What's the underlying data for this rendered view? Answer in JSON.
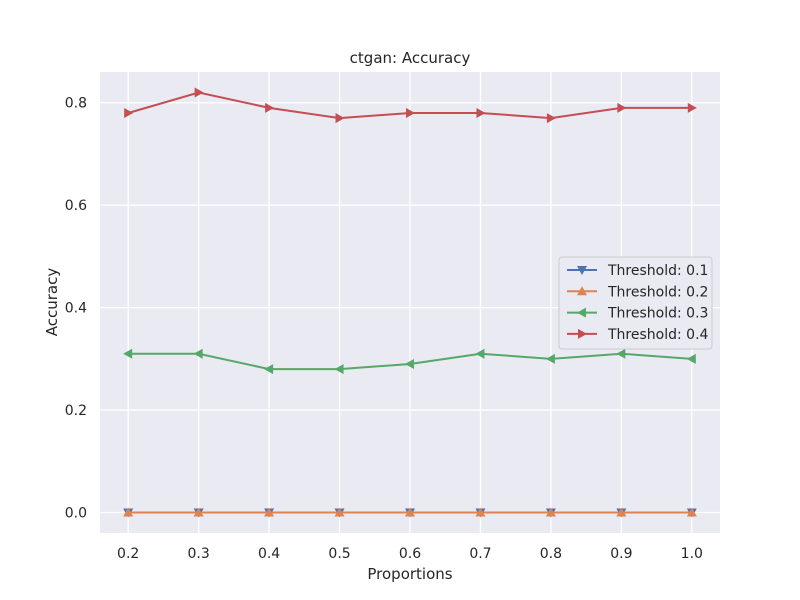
{
  "chart_data": {
    "type": "line",
    "title": "ctgan: Accuracy",
    "xlabel": "Proportions",
    "ylabel": "Accuracy",
    "x": [
      0.2,
      0.3,
      0.4,
      0.5,
      0.6,
      0.7,
      0.8,
      0.9,
      1.0
    ],
    "x_tick_labels": [
      "0.2",
      "0.3",
      "0.4",
      "0.5",
      "0.6",
      "0.7",
      "0.8",
      "0.9",
      "1.0"
    ],
    "xlim": [
      0.16,
      1.04
    ],
    "ylim": [
      -0.04,
      0.86
    ],
    "y_ticks": [
      0.0,
      0.2,
      0.4,
      0.6,
      0.8
    ],
    "y_tick_labels": [
      "0.0",
      "0.2",
      "0.4",
      "0.6",
      "0.8"
    ],
    "grid": true,
    "legend_position": "center-right",
    "style": {
      "axes_background": "#eaeaf2",
      "grid_color": "#ffffff"
    },
    "series": [
      {
        "name": "Threshold: 0.1",
        "color": "#4c72b0",
        "marker": "triangle-down",
        "values": [
          0.0,
          0.0,
          0.0,
          0.0,
          0.0,
          0.0,
          0.0,
          0.0,
          0.0
        ]
      },
      {
        "name": "Threshold: 0.2",
        "color": "#dd8452",
        "marker": "triangle-up",
        "values": [
          0.0,
          0.0,
          0.0,
          0.0,
          0.0,
          0.0,
          0.0,
          0.0,
          0.0
        ]
      },
      {
        "name": "Threshold: 0.3",
        "color": "#55a868",
        "marker": "triangle-left",
        "values": [
          0.31,
          0.31,
          0.28,
          0.28,
          0.29,
          0.31,
          0.3,
          0.31,
          0.3
        ]
      },
      {
        "name": "Threshold: 0.4",
        "color": "#c44e52",
        "marker": "triangle-right",
        "values": [
          0.78,
          0.82,
          0.79,
          0.77,
          0.78,
          0.78,
          0.77,
          0.79,
          0.79
        ]
      }
    ]
  }
}
